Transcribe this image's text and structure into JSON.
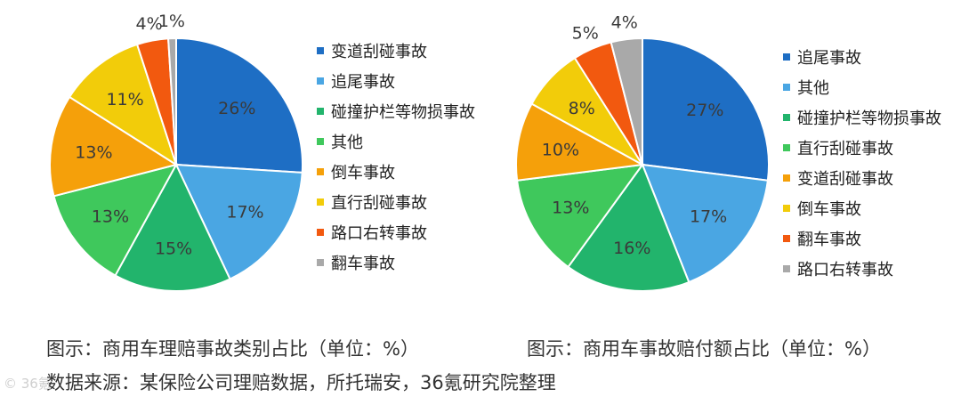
{
  "chart_data": [
    {
      "type": "pie",
      "title": "",
      "categories": [
        "变道刮碰事故",
        "追尾事故",
        "碰撞护栏等物损事故",
        "其他",
        "倒车事故",
        "直行刮碰事故",
        "路口右转事故",
        "翻车事故"
      ],
      "values": [
        26,
        17,
        15,
        13,
        13,
        11,
        4,
        1
      ],
      "labels": [
        "26%",
        "17%",
        "15%",
        "13%",
        "13%",
        "11%",
        "4%",
        "1%"
      ],
      "colors": [
        "#1e6ec4",
        "#4aa6e3",
        "#22b46c",
        "#3fc85c",
        "#f5a00a",
        "#f2cc0a",
        "#f2590f",
        "#a9a9a9"
      ],
      "legend": "right"
    },
    {
      "type": "pie",
      "title": "",
      "categories": [
        "追尾事故",
        "其他",
        "碰撞护栏等物损事故",
        "直行刮碰事故",
        "变道刮碰事故",
        "倒车事故",
        "翻车事故",
        "路口右转事故"
      ],
      "values": [
        27,
        17,
        16,
        13,
        10,
        8,
        5,
        4
      ],
      "labels": [
        "27%",
        "17%",
        "16%",
        "13%",
        "10%",
        "8%",
        "5%",
        "4%"
      ],
      "colors": [
        "#1e6ec4",
        "#4aa6e3",
        "#22b46c",
        "#3fc85c",
        "#f5a00a",
        "#f2cc0a",
        "#f2590f",
        "#a9a9a9"
      ],
      "legend": "right"
    }
  ],
  "captions": {
    "left": "图示：商用车理赔事故类别占比（单位：%）",
    "right": "图示：商用车事故赔付额占比（单位：%）",
    "source": "数据来源：某保险公司理赔数据，所托瑞安，36氪研究院整理"
  },
  "watermark": "© 36氪"
}
